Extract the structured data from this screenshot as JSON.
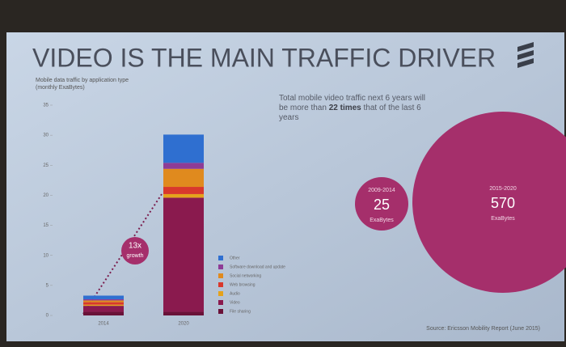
{
  "chart_data": {
    "type": "stacked_bar",
    "title": "VIDEO IS THE MAIN TRAFFIC DRIVER",
    "y_label": [
      "Mobile data traffic by application type",
      "(monthly ExaBytes)"
    ],
    "categories": [
      "2014",
      "2020"
    ],
    "series": [
      {
        "name": "File sharing",
        "color": "#6a1238",
        "values": [
          0.6,
          0.6
        ]
      },
      {
        "name": "Video",
        "color": "#8a1a4e",
        "values": [
          1.0,
          19.0
        ]
      },
      {
        "name": "Audio",
        "color": "#e5a21c",
        "values": [
          0.2,
          0.6
        ]
      },
      {
        "name": "Web browsing",
        "color": "#d9382c",
        "values": [
          0.4,
          1.2
        ]
      },
      {
        "name": "Social networking",
        "color": "#e08a1e",
        "values": [
          0.3,
          3.0
        ]
      },
      {
        "name": "Software download and update",
        "color": "#8e3c96",
        "values": [
          0.2,
          1.0
        ]
      },
      {
        "name": "Other",
        "color": "#2f6fd0",
        "values": [
          0.6,
          4.7
        ]
      }
    ],
    "ylim": [
      0,
      35
    ],
    "yticks": [
      0,
      5,
      10,
      15,
      20,
      25,
      30,
      35
    ],
    "growth_label": [
      "13x",
      "growth"
    ],
    "callout": [
      "Total mobile video traffic next 6 years will be more than ",
      "22 times",
      " that of the last 6 years"
    ],
    "bubbles": [
      {
        "period": "2009-2014",
        "value": "25",
        "unit": "ExaBytes"
      },
      {
        "period": "2015-2020",
        "value": "570",
        "unit": "ExaBytes"
      }
    ],
    "source": "Source: Ericsson Mobility Report (June 2015)"
  }
}
